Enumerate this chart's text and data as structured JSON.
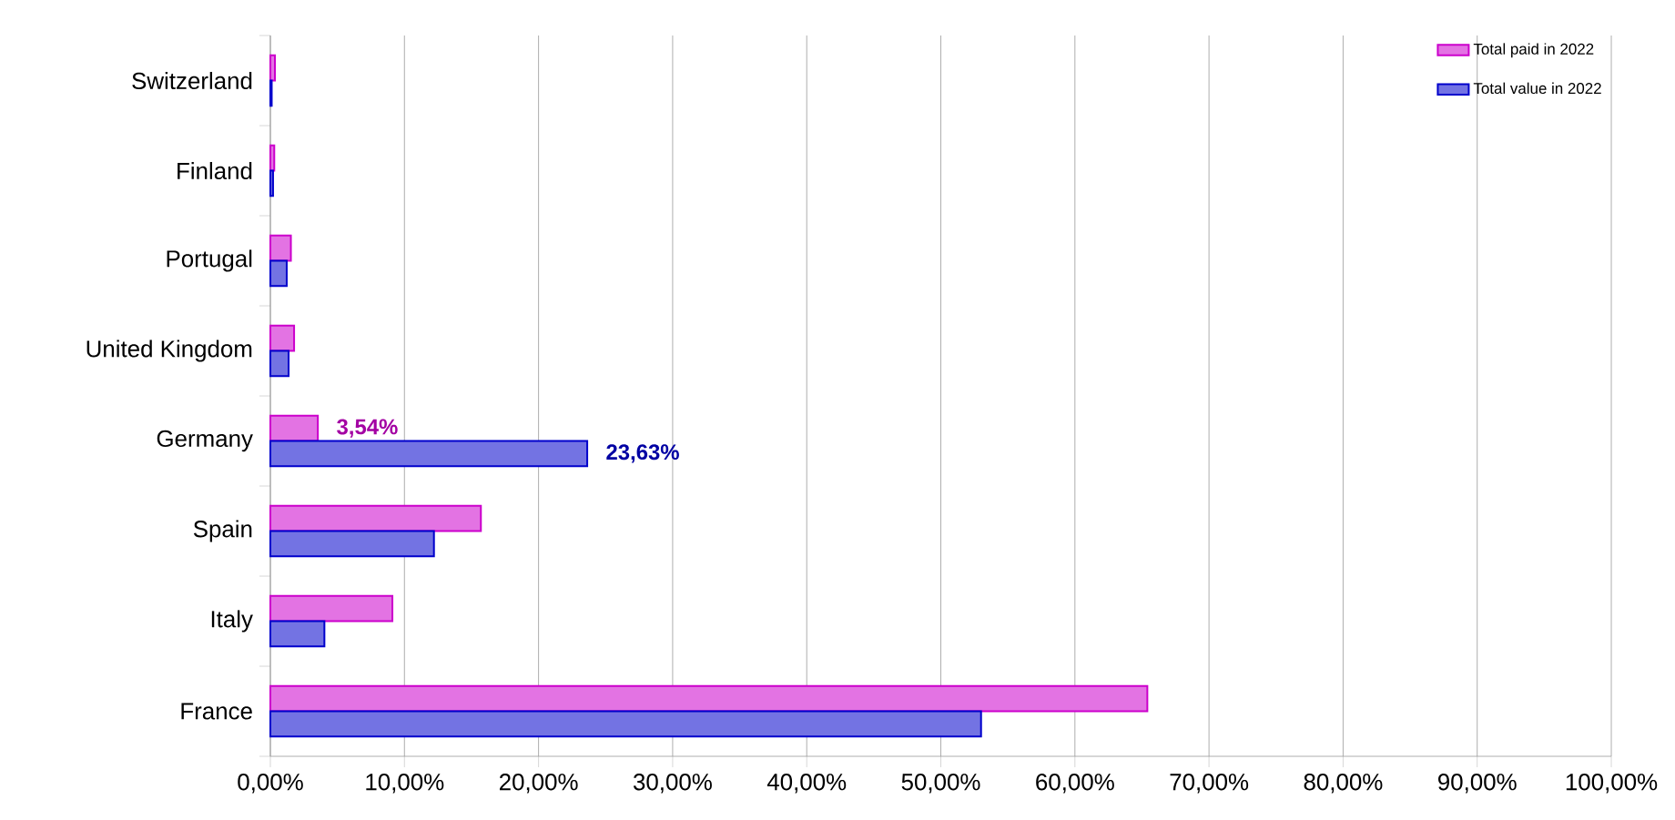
{
  "chart_data": {
    "type": "bar",
    "orientation": "horizontal",
    "categories": [
      "Switzerland",
      "Finland",
      "Portugal",
      "United Kingdom",
      "Germany",
      "Spain",
      "Italy",
      "France"
    ],
    "series": [
      {
        "name": "Total paid in 2022",
        "color": "#cc00cc",
        "values": [
          0.34,
          0.29,
          1.53,
          1.77,
          3.54,
          15.7,
          9.1,
          65.4
        ],
        "value_labels": [
          null,
          null,
          null,
          null,
          "3,54%",
          null,
          null,
          null
        ]
      },
      {
        "name": "Total value in 2022",
        "color": "#0000cc",
        "values": [
          0.1,
          0.2,
          1.22,
          1.36,
          23.63,
          12.2,
          4.03,
          53.0
        ],
        "value_labels": [
          null,
          null,
          null,
          null,
          "23,63%",
          null,
          null,
          null
        ]
      }
    ],
    "xlim": [
      0,
      100
    ],
    "xticks": [
      {
        "value": 0,
        "label": "0,00%"
      },
      {
        "value": 10,
        "label": "10,00%"
      },
      {
        "value": 20,
        "label": "20,00%"
      },
      {
        "value": 30,
        "label": "30,00%"
      },
      {
        "value": 40,
        "label": "40,00%"
      },
      {
        "value": 50,
        "label": "50,00%"
      },
      {
        "value": 60,
        "label": "60,00%"
      },
      {
        "value": 70,
        "label": "70,00%"
      },
      {
        "value": 80,
        "label": "80,00%"
      },
      {
        "value": 90,
        "label": "90,00%"
      },
      {
        "value": 100,
        "label": "100,00%"
      }
    ],
    "grid": "x",
    "legend": "top right"
  }
}
